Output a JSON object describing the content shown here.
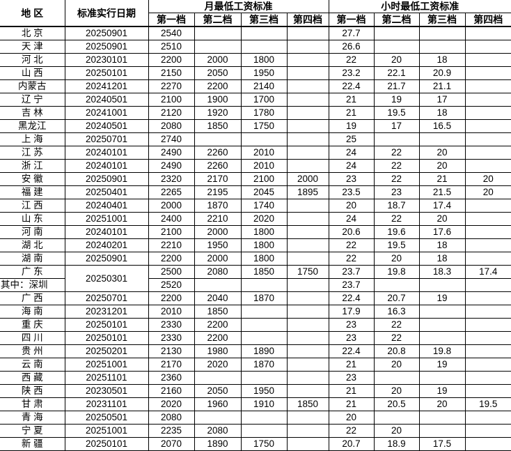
{
  "table": {
    "headers": {
      "region": "地 区",
      "date": "标准实行日期",
      "monthly_group": "月最低工资标准",
      "hourly_group": "小时最低工资标准",
      "tiers": [
        "第一档",
        "第二档",
        "第三档",
        "第四档"
      ]
    },
    "colors": {
      "border": "#000000",
      "text": "#000000",
      "background": "#ffffff"
    },
    "rows": [
      {
        "region": "北 京",
        "date": "20250901",
        "monthly": [
          "2540",
          "",
          "",
          ""
        ],
        "hourly": [
          "27.7",
          "",
          "",
          ""
        ]
      },
      {
        "region": "天 津",
        "date": "20250901",
        "monthly": [
          "2510",
          "",
          "",
          ""
        ],
        "hourly": [
          "26.6",
          "",
          "",
          ""
        ]
      },
      {
        "region": "河 北",
        "date": "20230101",
        "monthly": [
          "2200",
          "2000",
          "1800",
          ""
        ],
        "hourly": [
          "22",
          "20",
          "18",
          ""
        ]
      },
      {
        "region": "山 西",
        "date": "20250101",
        "monthly": [
          "2150",
          "2050",
          "1950",
          ""
        ],
        "hourly": [
          "23.2",
          "22.1",
          "20.9",
          ""
        ]
      },
      {
        "region": "内蒙古",
        "date": "20241201",
        "monthly": [
          "2270",
          "2200",
          "2140",
          ""
        ],
        "hourly": [
          "22.4",
          "21.7",
          "21.1",
          ""
        ]
      },
      {
        "region": "辽 宁",
        "date": "20240501",
        "monthly": [
          "2100",
          "1900",
          "1700",
          ""
        ],
        "hourly": [
          "21",
          "19",
          "17",
          ""
        ]
      },
      {
        "region": "吉 林",
        "date": "20241001",
        "monthly": [
          "2120",
          "1920",
          "1780",
          ""
        ],
        "hourly": [
          "21",
          "19.5",
          "18",
          ""
        ]
      },
      {
        "region": "黑龙江",
        "date": "20240501",
        "monthly": [
          "2080",
          "1850",
          "1750",
          ""
        ],
        "hourly": [
          "19",
          "17",
          "16.5",
          ""
        ]
      },
      {
        "region": "上 海",
        "date": "20250701",
        "monthly": [
          "2740",
          "",
          "",
          ""
        ],
        "hourly": [
          "25",
          "",
          "",
          ""
        ]
      },
      {
        "region": "江 苏",
        "date": "20240101",
        "monthly": [
          "2490",
          "2260",
          "2010",
          ""
        ],
        "hourly": [
          "24",
          "22",
          "20",
          ""
        ]
      },
      {
        "region": "浙 江",
        "date": "20240101",
        "monthly": [
          "2490",
          "2260",
          "2010",
          ""
        ],
        "hourly": [
          "24",
          "22",
          "20",
          ""
        ]
      },
      {
        "region": "安 徽",
        "date": "20250901",
        "monthly": [
          "2320",
          "2170",
          "2100",
          "2000"
        ],
        "hourly": [
          "23",
          "22",
          "21",
          "20"
        ]
      },
      {
        "region": "福 建",
        "date": "20250401",
        "monthly": [
          "2265",
          "2195",
          "2045",
          "1895"
        ],
        "hourly": [
          "23.5",
          "23",
          "21.5",
          "20"
        ]
      },
      {
        "region": "江 西",
        "date": "20240401",
        "monthly": [
          "2000",
          "1870",
          "1740",
          ""
        ],
        "hourly": [
          "20",
          "18.7",
          "17.4",
          ""
        ]
      },
      {
        "region": "山 东",
        "date": "20251001",
        "monthly": [
          "2400",
          "2210",
          "2020",
          ""
        ],
        "hourly": [
          "24",
          "22",
          "20",
          ""
        ]
      },
      {
        "region": "河 南",
        "date": "20240101",
        "monthly": [
          "2100",
          "2000",
          "1800",
          ""
        ],
        "hourly": [
          "20.6",
          "19.6",
          "17.6",
          ""
        ]
      },
      {
        "region": "湖 北",
        "date": "20240201",
        "monthly": [
          "2210",
          "1950",
          "1800",
          ""
        ],
        "hourly": [
          "22",
          "19.5",
          "18",
          ""
        ]
      },
      {
        "region": "湖 南",
        "date": "20250901",
        "monthly": [
          "2200",
          "2000",
          "1800",
          ""
        ],
        "hourly": [
          "22",
          "20",
          "18",
          ""
        ]
      },
      {
        "region": "广 东",
        "date": "20250301",
        "dateRowspan": 2,
        "monthly": [
          "2500",
          "2080",
          "1850",
          "1750"
        ],
        "hourly": [
          "23.7",
          "19.8",
          "18.3",
          "17.4"
        ]
      },
      {
        "region": "其中：深圳",
        "noDate": true,
        "regionAlign": "left",
        "monthly": [
          "2520",
          "",
          "",
          ""
        ],
        "hourly": [
          "23.7",
          "",
          "",
          ""
        ]
      },
      {
        "region": "广 西",
        "date": "20250701",
        "monthly": [
          "2200",
          "2040",
          "1870",
          ""
        ],
        "hourly": [
          "22.4",
          "20.7",
          "19",
          ""
        ]
      },
      {
        "region": "海 南",
        "date": "20231201",
        "monthly": [
          "2010",
          "1850",
          "",
          ""
        ],
        "hourly": [
          "17.9",
          "16.3",
          "",
          ""
        ]
      },
      {
        "region": "重 庆",
        "date": "20250101",
        "monthly": [
          "2330",
          "2200",
          "",
          ""
        ],
        "hourly": [
          "23",
          "22",
          "",
          ""
        ]
      },
      {
        "region": "四 川",
        "date": "20250101",
        "monthly": [
          "2330",
          "2200",
          "",
          ""
        ],
        "hourly": [
          "23",
          "22",
          "",
          ""
        ]
      },
      {
        "region": "贵 州",
        "date": "20250201",
        "monthly": [
          "2130",
          "1980",
          "1890",
          ""
        ],
        "hourly": [
          "22.4",
          "20.8",
          "19.8",
          ""
        ]
      },
      {
        "region": "云 南",
        "date": "20251001",
        "monthly": [
          "2170",
          "2020",
          "1870",
          ""
        ],
        "hourly": [
          "21",
          "20",
          "19",
          ""
        ]
      },
      {
        "region": "西 藏",
        "date": "20251101",
        "monthly": [
          "2360",
          "",
          "",
          ""
        ],
        "hourly": [
          "23",
          "",
          "",
          ""
        ]
      },
      {
        "region": "陕 西",
        "date": "20230501",
        "monthly": [
          "2160",
          "2050",
          "1950",
          ""
        ],
        "hourly": [
          "21",
          "20",
          "19",
          ""
        ]
      },
      {
        "region": "甘 肃",
        "date": "20231101",
        "monthly": [
          "2020",
          "1960",
          "1910",
          "1850"
        ],
        "hourly": [
          "21",
          "20.5",
          "20",
          "19.5"
        ]
      },
      {
        "region": "青 海",
        "date": "20250501",
        "monthly": [
          "2080",
          "",
          "",
          ""
        ],
        "hourly": [
          "20",
          "",
          "",
          ""
        ]
      },
      {
        "region": "宁 夏",
        "date": "20251001",
        "monthly": [
          "2235",
          "2080",
          "",
          ""
        ],
        "hourly": [
          "22",
          "20",
          "",
          ""
        ]
      },
      {
        "region": "新 疆",
        "date": "20250101",
        "monthly": [
          "2070",
          "1890",
          "1750",
          ""
        ],
        "hourly": [
          "20.7",
          "18.9",
          "17.5",
          ""
        ]
      }
    ]
  }
}
